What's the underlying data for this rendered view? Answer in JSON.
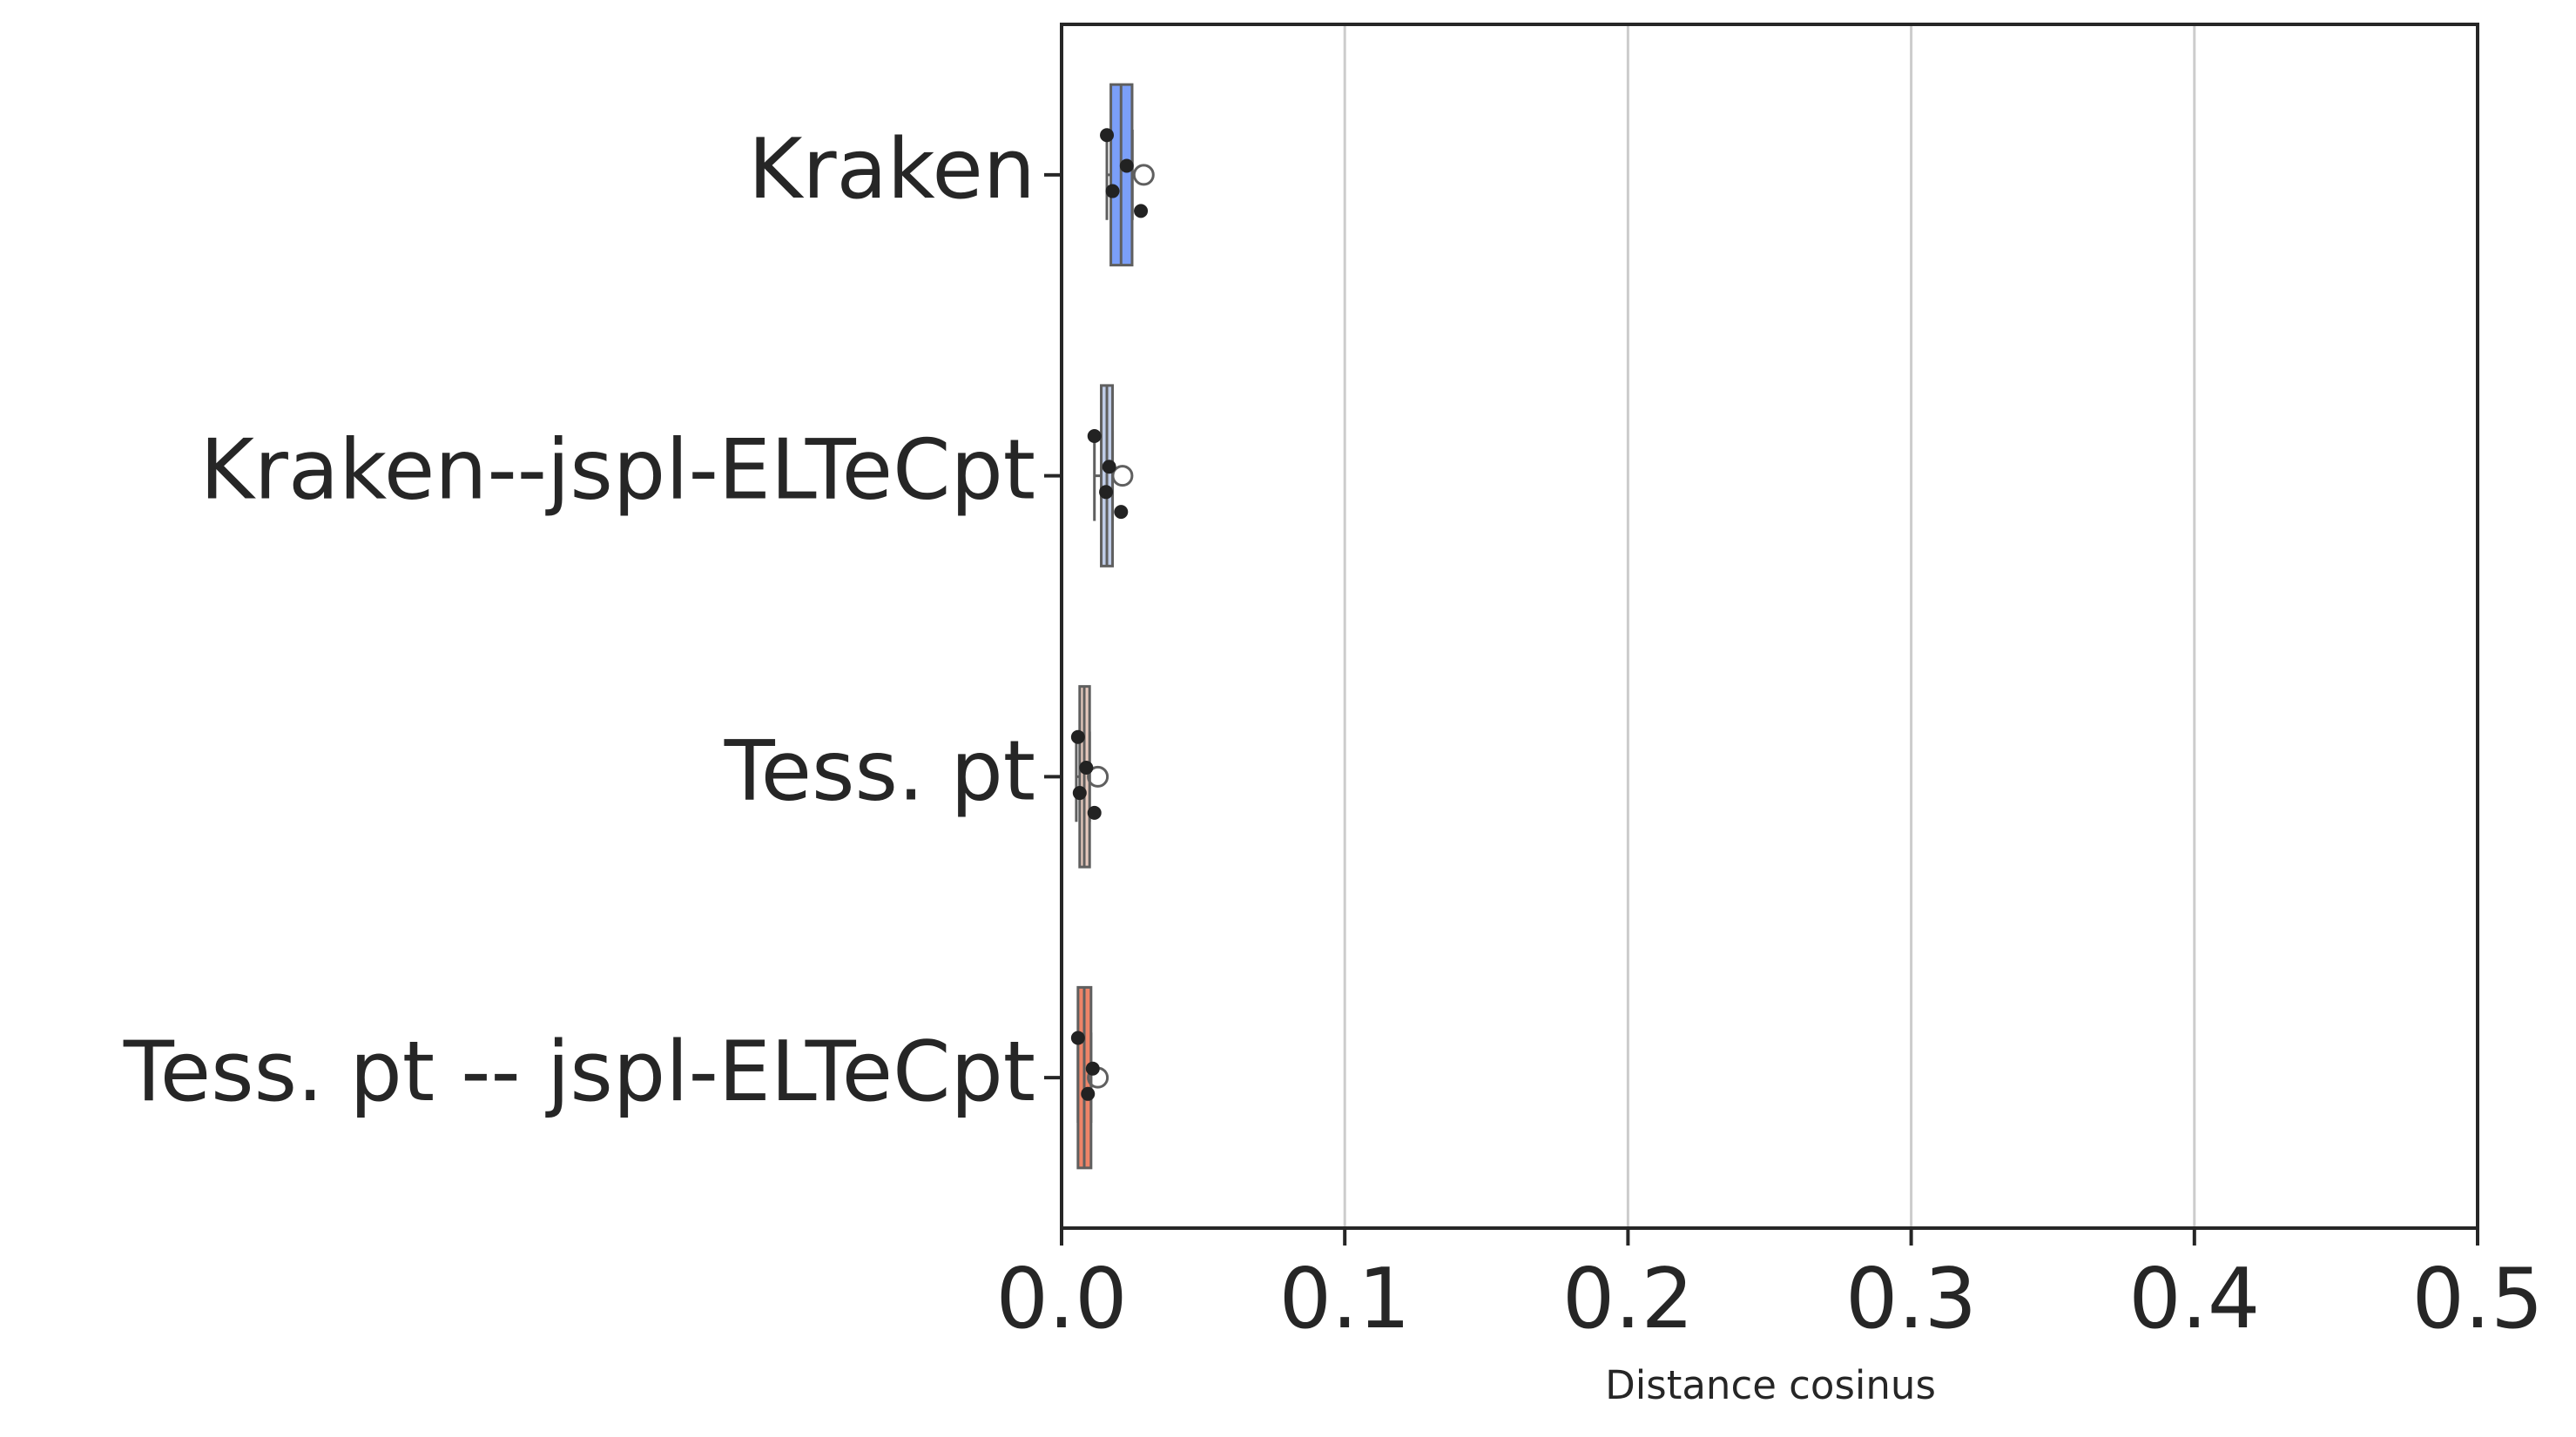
{
  "chart_data": {
    "type": "boxplot",
    "orientation": "horizontal",
    "xlabel": "Distance cosinus",
    "categories": [
      "Kraken",
      "Kraken--jspl-ELTeCpt",
      "Tess. pt",
      "Tess. pt -- jspl-ELTeCpt"
    ],
    "colors": [
      "#7b9ff9",
      "#c0cde8",
      "#e6c9bd",
      "#ee8468"
    ],
    "boxes": [
      {
        "whislo": 0.016,
        "q1": 0.0174,
        "median": 0.021,
        "q3": 0.0249,
        "whishi": 0.025,
        "outliers": [
          0.029
        ],
        "points": [
          0.016,
          0.018,
          0.023,
          0.028
        ]
      },
      {
        "whislo": 0.0116,
        "q1": 0.014,
        "median": 0.016,
        "q3": 0.018,
        "whishi": 0.018,
        "outliers": [
          0.0215
        ],
        "points": [
          0.0116,
          0.0157,
          0.0168,
          0.021
        ]
      },
      {
        "whislo": 0.0052,
        "q1": 0.0064,
        "median": 0.008,
        "q3": 0.0099,
        "whishi": 0.0099,
        "outliers": [
          0.0128
        ],
        "points": [
          0.0058,
          0.0064,
          0.0087,
          0.0116
        ]
      },
      {
        "whislo": 0.0058,
        "q1": 0.0058,
        "median": 0.008,
        "q3": 0.0104,
        "whishi": 0.0104,
        "outliers": [
          0.0128
        ],
        "points": [
          0.0058,
          0.0093,
          0.011
        ]
      }
    ],
    "xlim": [
      0,
      0.5
    ],
    "xticks": [
      {
        "value": 0,
        "label": "0.0"
      },
      0.1,
      0.2,
      0.3,
      0.4,
      0.5
    ],
    "grid": true
  }
}
